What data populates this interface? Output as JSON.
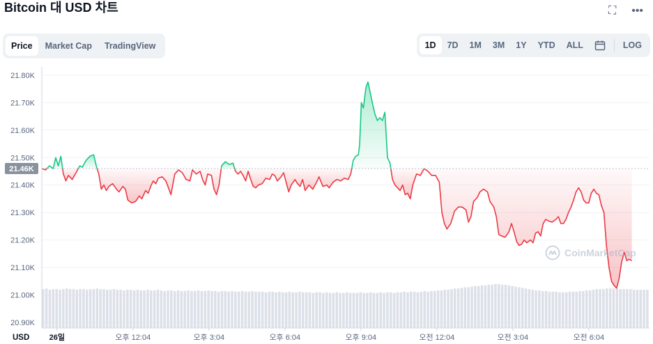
{
  "header": {
    "title": "Bitcoin 대 USD 차트",
    "expand_icon": "expand-icon",
    "more_icon": "more-horizontal-icon"
  },
  "tabs": [
    {
      "label": "Price",
      "active": true
    },
    {
      "label": "Market Cap",
      "active": false
    },
    {
      "label": "TradingView",
      "active": false
    }
  ],
  "ranges": [
    {
      "label": "1D",
      "active": true
    },
    {
      "label": "7D",
      "active": false
    },
    {
      "label": "1M",
      "active": false
    },
    {
      "label": "3M",
      "active": false
    },
    {
      "label": "1Y",
      "active": false
    },
    {
      "label": "YTD",
      "active": false
    },
    {
      "label": "ALL",
      "active": false
    }
  ],
  "calendar_icon": "calendar-icon",
  "log_label": "LOG",
  "watermark": "CoinMarketCap",
  "colors": {
    "up": "#16c784",
    "down": "#ea3943",
    "ref_label_bg": "#8a919e"
  },
  "chart_data": {
    "type": "area",
    "y_unit_label": "USD",
    "yticks": [
      "21.80K",
      "21.70K",
      "21.60K",
      "21.50K",
      "21.40K",
      "21.30K",
      "21.20K",
      "21.10K",
      "21.00K",
      "20.90K"
    ],
    "ytick_values": [
      21800,
      21700,
      21600,
      21500,
      21400,
      21300,
      21200,
      21100,
      21000,
      20900
    ],
    "ylim": [
      20880,
      21830
    ],
    "xlim": [
      0,
      24
    ],
    "xticks": [
      {
        "label": "26일",
        "x": 0.6,
        "bold": true
      },
      {
        "label": "오후 12:04",
        "x": 3.6
      },
      {
        "label": "오후 3:04",
        "x": 6.6
      },
      {
        "label": "오후 6:04",
        "x": 9.6
      },
      {
        "label": "오후 9:04",
        "x": 12.6
      },
      {
        "label": "오전 12:04",
        "x": 15.6
      },
      {
        "label": "오전 3:04",
        "x": 18.6
      },
      {
        "label": "오전 6:04",
        "x": 21.6
      }
    ],
    "reference_price": 21460,
    "reference_label": "21.46K",
    "series": [
      {
        "values": [
          [
            0.0,
            21460
          ],
          [
            0.15,
            21455
          ],
          [
            0.3,
            21470
          ],
          [
            0.45,
            21460
          ],
          [
            0.55,
            21500
          ],
          [
            0.65,
            21470
          ],
          [
            0.75,
            21505
          ],
          [
            0.85,
            21440
          ],
          [
            0.95,
            21415
          ],
          [
            1.05,
            21435
          ],
          [
            1.2,
            21420
          ],
          [
            1.35,
            21445
          ],
          [
            1.5,
            21470
          ],
          [
            1.6,
            21465
          ],
          [
            1.75,
            21490
          ],
          [
            1.9,
            21505
          ],
          [
            2.05,
            21510
          ],
          [
            2.15,
            21470
          ],
          [
            2.25,
            21440
          ],
          [
            2.35,
            21385
          ],
          [
            2.45,
            21400
          ],
          [
            2.55,
            21380
          ],
          [
            2.65,
            21395
          ],
          [
            2.8,
            21405
          ],
          [
            2.95,
            21385
          ],
          [
            3.05,
            21375
          ],
          [
            3.2,
            21395
          ],
          [
            3.3,
            21385
          ],
          [
            3.4,
            21345
          ],
          [
            3.55,
            21335
          ],
          [
            3.7,
            21340
          ],
          [
            3.85,
            21360
          ],
          [
            3.95,
            21350
          ],
          [
            4.1,
            21380
          ],
          [
            4.2,
            21370
          ],
          [
            4.3,
            21395
          ],
          [
            4.4,
            21415
          ],
          [
            4.5,
            21405
          ],
          [
            4.6,
            21425
          ],
          [
            4.75,
            21430
          ],
          [
            4.9,
            21415
          ],
          [
            5.0,
            21390
          ],
          [
            5.1,
            21365
          ],
          [
            5.25,
            21440
          ],
          [
            5.4,
            21455
          ],
          [
            5.55,
            21445
          ],
          [
            5.7,
            21420
          ],
          [
            5.85,
            21415
          ],
          [
            5.95,
            21455
          ],
          [
            6.1,
            21440
          ],
          [
            6.25,
            21450
          ],
          [
            6.35,
            21420
          ],
          [
            6.45,
            21400
          ],
          [
            6.55,
            21440
          ],
          [
            6.7,
            21435
          ],
          [
            6.8,
            21385
          ],
          [
            6.9,
            21365
          ],
          [
            7.0,
            21400
          ],
          [
            7.1,
            21470
          ],
          [
            7.25,
            21485
          ],
          [
            7.4,
            21475
          ],
          [
            7.55,
            21480
          ],
          [
            7.65,
            21450
          ],
          [
            7.75,
            21440
          ],
          [
            7.85,
            21450
          ],
          [
            7.95,
            21435
          ],
          [
            8.05,
            21415
          ],
          [
            8.15,
            21450
          ],
          [
            8.25,
            21420
          ],
          [
            8.35,
            21395
          ],
          [
            8.45,
            21390
          ],
          [
            8.55,
            21400
          ],
          [
            8.7,
            21405
          ],
          [
            8.85,
            21425
          ],
          [
            9.0,
            21420
          ],
          [
            9.1,
            21440
          ],
          [
            9.2,
            21435
          ],
          [
            9.3,
            21415
          ],
          [
            9.45,
            21430
          ],
          [
            9.55,
            21445
          ],
          [
            9.65,
            21410
          ],
          [
            9.75,
            21375
          ],
          [
            9.85,
            21400
          ],
          [
            10.0,
            21420
          ],
          [
            10.1,
            21405
          ],
          [
            10.2,
            21395
          ],
          [
            10.3,
            21420
          ],
          [
            10.4,
            21380
          ],
          [
            10.55,
            21400
          ],
          [
            10.7,
            21385
          ],
          [
            10.85,
            21410
          ],
          [
            10.95,
            21430
          ],
          [
            11.1,
            21395
          ],
          [
            11.25,
            21400
          ],
          [
            11.35,
            21390
          ],
          [
            11.5,
            21410
          ],
          [
            11.65,
            21420
          ],
          [
            11.8,
            21415
          ],
          [
            11.95,
            21425
          ],
          [
            12.1,
            21420
          ],
          [
            12.2,
            21440
          ],
          [
            12.3,
            21490
          ],
          [
            12.4,
            21505
          ],
          [
            12.5,
            21510
          ],
          [
            12.55,
            21545
          ],
          [
            12.62,
            21700
          ],
          [
            12.7,
            21680
          ],
          [
            12.8,
            21755
          ],
          [
            12.88,
            21775
          ],
          [
            12.95,
            21745
          ],
          [
            13.05,
            21700
          ],
          [
            13.15,
            21660
          ],
          [
            13.25,
            21635
          ],
          [
            13.35,
            21645
          ],
          [
            13.45,
            21635
          ],
          [
            13.55,
            21665
          ],
          [
            13.65,
            21500
          ],
          [
            13.75,
            21480
          ],
          [
            13.85,
            21420
          ],
          [
            13.95,
            21400
          ],
          [
            14.05,
            21390
          ],
          [
            14.15,
            21380
          ],
          [
            14.25,
            21400
          ],
          [
            14.35,
            21365
          ],
          [
            14.45,
            21370
          ],
          [
            14.55,
            21350
          ],
          [
            14.65,
            21400
          ],
          [
            14.8,
            21440
          ],
          [
            14.95,
            21435
          ],
          [
            15.1,
            21460
          ],
          [
            15.25,
            21450
          ],
          [
            15.4,
            21435
          ],
          [
            15.55,
            21435
          ],
          [
            15.7,
            21410
          ],
          [
            15.8,
            21300
          ],
          [
            15.9,
            21260
          ],
          [
            16.0,
            21240
          ],
          [
            16.15,
            21260
          ],
          [
            16.3,
            21305
          ],
          [
            16.45,
            21320
          ],
          [
            16.6,
            21320
          ],
          [
            16.75,
            21310
          ],
          [
            16.85,
            21265
          ],
          [
            16.95,
            21285
          ],
          [
            17.05,
            21340
          ],
          [
            17.2,
            21355
          ],
          [
            17.3,
            21375
          ],
          [
            17.45,
            21385
          ],
          [
            17.6,
            21375
          ],
          [
            17.7,
            21340
          ],
          [
            17.85,
            21320
          ],
          [
            17.95,
            21285
          ],
          [
            18.05,
            21220
          ],
          [
            18.15,
            21215
          ],
          [
            18.3,
            21210
          ],
          [
            18.45,
            21230
          ],
          [
            18.55,
            21260
          ],
          [
            18.65,
            21230
          ],
          [
            18.75,
            21195
          ],
          [
            18.85,
            21180
          ],
          [
            18.95,
            21185
          ],
          [
            19.05,
            21200
          ],
          [
            19.15,
            21190
          ],
          [
            19.3,
            21200
          ],
          [
            19.4,
            21190
          ],
          [
            19.5,
            21225
          ],
          [
            19.6,
            21230
          ],
          [
            19.7,
            21215
          ],
          [
            19.8,
            21260
          ],
          [
            19.9,
            21275
          ],
          [
            20.0,
            21270
          ],
          [
            20.15,
            21265
          ],
          [
            20.3,
            21275
          ],
          [
            20.4,
            21285
          ],
          [
            20.5,
            21260
          ],
          [
            20.6,
            21260
          ],
          [
            20.7,
            21275
          ],
          [
            20.8,
            21300
          ],
          [
            20.9,
            21320
          ],
          [
            21.0,
            21345
          ],
          [
            21.1,
            21375
          ],
          [
            21.2,
            21390
          ],
          [
            21.3,
            21375
          ],
          [
            21.4,
            21345
          ],
          [
            21.5,
            21335
          ],
          [
            21.6,
            21335
          ],
          [
            21.7,
            21370
          ],
          [
            21.8,
            21385
          ],
          [
            21.9,
            21370
          ],
          [
            22.0,
            21365
          ],
          [
            22.1,
            21325
          ],
          [
            22.2,
            21300
          ],
          [
            22.3,
            21180
          ],
          [
            22.4,
            21100
          ],
          [
            22.5,
            21050
          ],
          [
            22.6,
            21035
          ],
          [
            22.7,
            21025
          ],
          [
            22.8,
            21060
          ],
          [
            22.9,
            21120
          ],
          [
            23.0,
            21155
          ],
          [
            23.1,
            21125
          ],
          [
            23.2,
            21130
          ],
          [
            23.3,
            21125
          ]
        ]
      }
    ],
    "volume": [
      0.62,
      0.63,
      0.61,
      0.62,
      0.62,
      0.61,
      0.62,
      0.63,
      0.62,
      0.62,
      0.61,
      0.62,
      0.62,
      0.61,
      0.62,
      0.62,
      0.63,
      0.62,
      0.62,
      0.61,
      0.61,
      0.62,
      0.61,
      0.61,
      0.6,
      0.61,
      0.61,
      0.6,
      0.61,
      0.6,
      0.6,
      0.61,
      0.6,
      0.6,
      0.61,
      0.6,
      0.59,
      0.6,
      0.6,
      0.59,
      0.6,
      0.59,
      0.59,
      0.6,
      0.59,
      0.59,
      0.6,
      0.59,
      0.59,
      0.6,
      0.59,
      0.59,
      0.58,
      0.59,
      0.59,
      0.58,
      0.59,
      0.58,
      0.58,
      0.59,
      0.58,
      0.58,
      0.59,
      0.58,
      0.58,
      0.58,
      0.57,
      0.58,
      0.58,
      0.57,
      0.58,
      0.57,
      0.57,
      0.58,
      0.57,
      0.57,
      0.58,
      0.57,
      0.57,
      0.57,
      0.56,
      0.57,
      0.57,
      0.56,
      0.57,
      0.56,
      0.56,
      0.57,
      0.56,
      0.56,
      0.57,
      0.56,
      0.56,
      0.56,
      0.57,
      0.56,
      0.56,
      0.57,
      0.56,
      0.56,
      0.57,
      0.56,
      0.57,
      0.57,
      0.56,
      0.57,
      0.57,
      0.58,
      0.57,
      0.58,
      0.58,
      0.57,
      0.58,
      0.59,
      0.58,
      0.59,
      0.59,
      0.6,
      0.6,
      0.61,
      0.61,
      0.62,
      0.63,
      0.63,
      0.64,
      0.65,
      0.65,
      0.66,
      0.67,
      0.67,
      0.68,
      0.68,
      0.69,
      0.69,
      0.7,
      0.7,
      0.69,
      0.69,
      0.68,
      0.67,
      0.66,
      0.65,
      0.64,
      0.63,
      0.62,
      0.61,
      0.6,
      0.6,
      0.59,
      0.59,
      0.58,
      0.58,
      0.58,
      0.57,
      0.57,
      0.57,
      0.58,
      0.58,
      0.58,
      0.59,
      0.59,
      0.6,
      0.6,
      0.61,
      0.62,
      0.62,
      0.62,
      0.63,
      0.63,
      0.63,
      0.63,
      0.62,
      0.62,
      0.62,
      0.62,
      0.61,
      0.61,
      0.61,
      0.61,
      0.61
    ]
  }
}
